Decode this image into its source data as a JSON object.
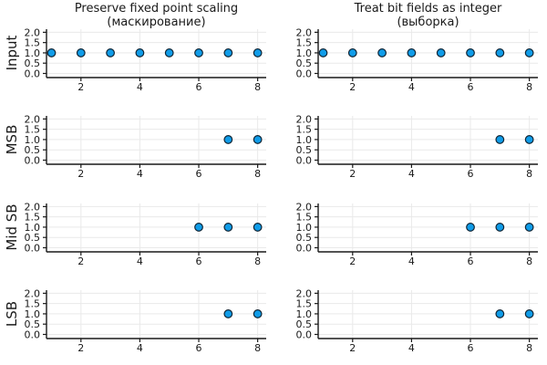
{
  "chart_data": {
    "type": "scatter",
    "layout": {
      "rows": 4,
      "cols": 2
    },
    "col_titles": [
      [
        "Preserve fixed point scaling",
        "(маскирование)"
      ],
      [
        "Treat bit fields as integer",
        "(выборка)"
      ]
    ],
    "row_labels": [
      "Input",
      "MSB",
      "Mid SB",
      "LSB"
    ],
    "x_ticks": [
      2,
      4,
      6,
      8
    ],
    "x_tick_labels": [
      "2",
      "4",
      "6",
      "8"
    ],
    "y_ticks": [
      0.0,
      0.5,
      1.0,
      1.5,
      2.0
    ],
    "y_tick_labels": [
      "0.0",
      "0.5",
      "1.0",
      "1.5",
      "2.0"
    ],
    "xlim": [
      0.83,
      8.29
    ],
    "ylim": [
      -0.2,
      2.15
    ],
    "grid": true,
    "legend": "none",
    "style": {
      "marker_fill": "#109ce8",
      "marker_edge": "#102535",
      "spine": "#191919",
      "grid": "#e9e9e9",
      "text": "#191919",
      "background": "#ffffff"
    },
    "subplots": [
      {
        "row": "Input",
        "col": "left",
        "x": [
          1,
          2,
          3,
          4,
          5,
          6,
          7,
          8
        ],
        "y": [
          1,
          1,
          1,
          1,
          1,
          1,
          1,
          1
        ]
      },
      {
        "row": "Input",
        "col": "right",
        "x": [
          1,
          2,
          3,
          4,
          5,
          6,
          7,
          8
        ],
        "y": [
          1,
          1,
          1,
          1,
          1,
          1,
          1,
          1
        ]
      },
      {
        "row": "MSB",
        "col": "left",
        "x": [
          7,
          8
        ],
        "y": [
          1,
          1
        ]
      },
      {
        "row": "MSB",
        "col": "right",
        "x": [
          7,
          8
        ],
        "y": [
          1,
          1
        ]
      },
      {
        "row": "Mid SB",
        "col": "left",
        "x": [
          6,
          7,
          8
        ],
        "y": [
          1,
          1,
          1
        ]
      },
      {
        "row": "Mid SB",
        "col": "right",
        "x": [
          6,
          7,
          8
        ],
        "y": [
          1,
          1,
          1
        ]
      },
      {
        "row": "LSB",
        "col": "left",
        "x": [
          7,
          8
        ],
        "y": [
          1,
          1
        ]
      },
      {
        "row": "LSB",
        "col": "right",
        "x": [
          7,
          8
        ],
        "y": [
          1,
          1
        ]
      }
    ]
  }
}
